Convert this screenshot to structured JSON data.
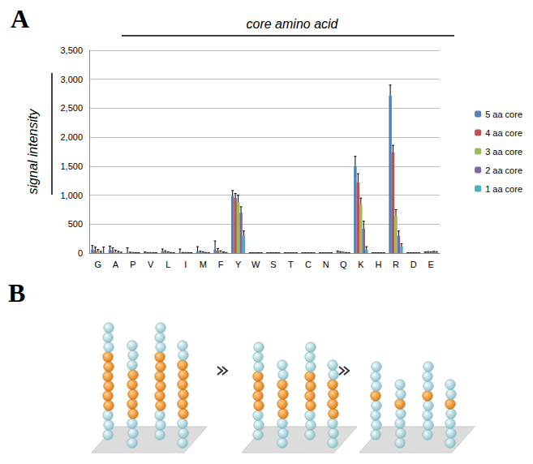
{
  "panel_label": "A",
  "chart_data": {
    "type": "bar",
    "title": "core amino acid",
    "y_label": "signal intensity",
    "categories": [
      "G",
      "A",
      "P",
      "V",
      "L",
      "I",
      "M",
      "F",
      "Y",
      "W",
      "S",
      "T",
      "C",
      "N",
      "Q",
      "K",
      "H",
      "R",
      "D",
      "E"
    ],
    "series": [
      {
        "name": "5 aa core",
        "color": "#4f81bd",
        "values": [
          60,
          60,
          10,
          10,
          30,
          10,
          30,
          60,
          980,
          3,
          3,
          3,
          3,
          3,
          20,
          1500,
          3,
          2720,
          3,
          10
        ],
        "errors": [
          70,
          60,
          80,
          10,
          40,
          60,
          80,
          150,
          100,
          3,
          3,
          3,
          3,
          3,
          15,
          170,
          3,
          180,
          3,
          10
        ]
      },
      {
        "name": "4 aa core",
        "color": "#c0504d",
        "values": [
          45,
          40,
          5,
          5,
          20,
          5,
          15,
          40,
          950,
          3,
          3,
          3,
          3,
          3,
          15,
          1220,
          3,
          1740,
          3,
          15
        ],
        "errors": [
          60,
          50,
          10,
          5,
          20,
          5,
          20,
          40,
          80,
          3,
          3,
          3,
          3,
          3,
          10,
          150,
          3,
          120,
          3,
          10
        ]
      },
      {
        "name": "3 aa core",
        "color": "#9bbb59",
        "values": [
          20,
          20,
          5,
          5,
          10,
          5,
          10,
          20,
          880,
          3,
          3,
          3,
          3,
          3,
          10,
          850,
          3,
          650,
          3,
          10
        ],
        "errors": [
          40,
          30,
          5,
          5,
          10,
          5,
          10,
          20,
          120,
          3,
          3,
          3,
          3,
          3,
          5,
          100,
          3,
          100,
          3,
          10
        ]
      },
      {
        "name": "2 aa core",
        "color": "#8064a2",
        "values": [
          10,
          10,
          3,
          3,
          5,
          3,
          5,
          10,
          700,
          3,
          3,
          3,
          3,
          3,
          5,
          420,
          3,
          300,
          3,
          20
        ],
        "errors": [
          20,
          20,
          5,
          5,
          5,
          5,
          5,
          10,
          100,
          3,
          3,
          3,
          3,
          3,
          5,
          130,
          3,
          80,
          3,
          10
        ]
      },
      {
        "name": "1 aa core",
        "color": "#4bacc6",
        "values": [
          5,
          5,
          2,
          2,
          3,
          2,
          3,
          5,
          300,
          3,
          3,
          3,
          3,
          3,
          3,
          60,
          3,
          120,
          3,
          15
        ],
        "errors": [
          100,
          10,
          5,
          5,
          5,
          5,
          5,
          5,
          80,
          3,
          3,
          3,
          3,
          3,
          3,
          50,
          3,
          40,
          3,
          10
        ]
      }
    ],
    "ylim": [
      0,
      3500
    ],
    "yticks": [
      0,
      500,
      1000,
      1500,
      2000,
      2500,
      3000,
      3500
    ],
    "grid": true,
    "legend": "right"
  },
  "diagram": {
    "panel_label": "B"
  }
}
